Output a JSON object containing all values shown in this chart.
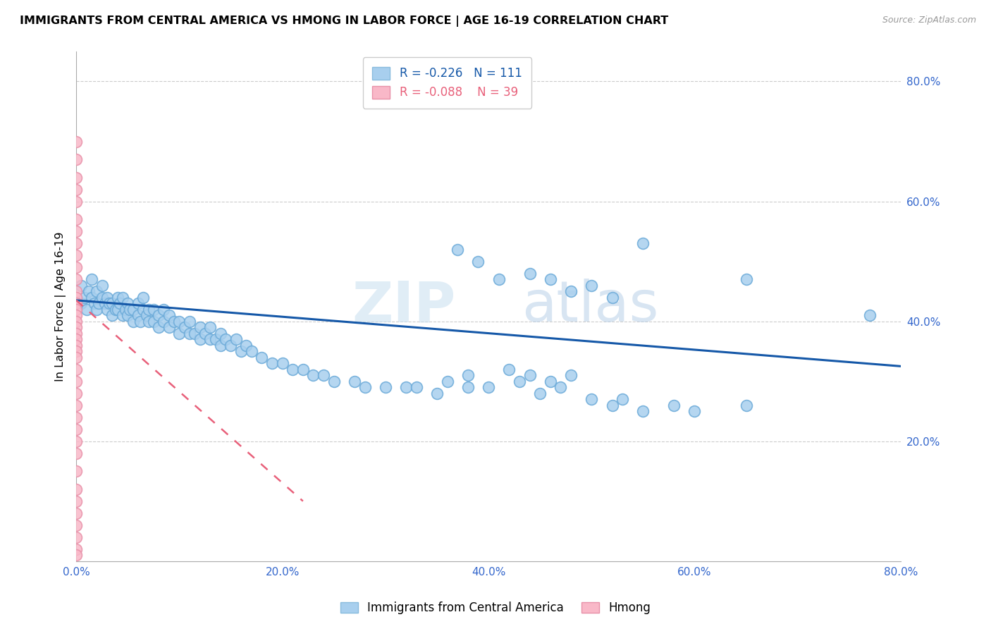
{
  "title": "IMMIGRANTS FROM CENTRAL AMERICA VS HMONG IN LABOR FORCE | AGE 16-19 CORRELATION CHART",
  "source": "Source: ZipAtlas.com",
  "ylabel": "In Labor Force | Age 16-19",
  "blue_R": -0.226,
  "blue_N": 111,
  "pink_R": -0.088,
  "pink_N": 39,
  "blue_color": "#A8CFEE",
  "pink_color": "#F9B8C8",
  "blue_line_color": "#1558A8",
  "pink_line_color": "#E8607A",
  "legend_blue_label": "Immigrants from Central America",
  "legend_pink_label": "Hmong",
  "watermark": "ZIPAtlas",
  "xmin": 0.0,
  "xmax": 0.8,
  "ymin": 0.0,
  "ymax": 0.85,
  "blue_line_x0": 0.0,
  "blue_line_x1": 0.8,
  "blue_line_y0": 0.435,
  "blue_line_y1": 0.325,
  "pink_line_x0": 0.0,
  "pink_line_x1": 0.22,
  "pink_line_y0": 0.435,
  "pink_line_y1": 0.1,
  "blue_scatter_x": [
    0.005,
    0.005,
    0.008,
    0.01,
    0.012,
    0.015,
    0.015,
    0.018,
    0.02,
    0.02,
    0.022,
    0.025,
    0.025,
    0.028,
    0.03,
    0.03,
    0.032,
    0.035,
    0.035,
    0.038,
    0.04,
    0.04,
    0.042,
    0.045,
    0.045,
    0.048,
    0.05,
    0.05,
    0.052,
    0.055,
    0.055,
    0.06,
    0.06,
    0.062,
    0.065,
    0.065,
    0.068,
    0.07,
    0.07,
    0.075,
    0.075,
    0.08,
    0.08,
    0.085,
    0.085,
    0.09,
    0.09,
    0.095,
    0.1,
    0.1,
    0.105,
    0.11,
    0.11,
    0.115,
    0.12,
    0.12,
    0.125,
    0.13,
    0.13,
    0.135,
    0.14,
    0.14,
    0.145,
    0.15,
    0.155,
    0.16,
    0.165,
    0.17,
    0.18,
    0.19,
    0.2,
    0.21,
    0.22,
    0.23,
    0.24,
    0.25,
    0.27,
    0.28,
    0.3,
    0.32,
    0.33,
    0.35,
    0.36,
    0.38,
    0.38,
    0.4,
    0.42,
    0.43,
    0.44,
    0.45,
    0.46,
    0.47,
    0.48,
    0.5,
    0.52,
    0.53,
    0.55,
    0.58,
    0.6,
    0.65,
    0.37,
    0.39,
    0.41,
    0.44,
    0.46,
    0.48,
    0.5,
    0.52,
    0.55,
    0.65,
    0.77
  ],
  "blue_scatter_y": [
    0.43,
    0.46,
    0.44,
    0.42,
    0.45,
    0.44,
    0.47,
    0.43,
    0.42,
    0.45,
    0.43,
    0.44,
    0.46,
    0.43,
    0.42,
    0.44,
    0.43,
    0.41,
    0.43,
    0.42,
    0.42,
    0.44,
    0.43,
    0.41,
    0.44,
    0.42,
    0.41,
    0.43,
    0.42,
    0.4,
    0.42,
    0.41,
    0.43,
    0.4,
    0.42,
    0.44,
    0.41,
    0.4,
    0.42,
    0.4,
    0.42,
    0.39,
    0.41,
    0.4,
    0.42,
    0.39,
    0.41,
    0.4,
    0.38,
    0.4,
    0.39,
    0.38,
    0.4,
    0.38,
    0.37,
    0.39,
    0.38,
    0.37,
    0.39,
    0.37,
    0.36,
    0.38,
    0.37,
    0.36,
    0.37,
    0.35,
    0.36,
    0.35,
    0.34,
    0.33,
    0.33,
    0.32,
    0.32,
    0.31,
    0.31,
    0.3,
    0.3,
    0.29,
    0.29,
    0.29,
    0.29,
    0.28,
    0.3,
    0.29,
    0.31,
    0.29,
    0.32,
    0.3,
    0.31,
    0.28,
    0.3,
    0.29,
    0.31,
    0.27,
    0.26,
    0.27,
    0.25,
    0.26,
    0.25,
    0.26,
    0.52,
    0.5,
    0.47,
    0.48,
    0.47,
    0.45,
    0.46,
    0.44,
    0.53,
    0.47,
    0.41
  ],
  "pink_scatter_x": [
    0.0,
    0.0,
    0.0,
    0.0,
    0.0,
    0.0,
    0.0,
    0.0,
    0.0,
    0.0,
    0.0,
    0.0,
    0.0,
    0.0,
    0.0,
    0.0,
    0.0,
    0.0,
    0.0,
    0.0,
    0.0,
    0.0,
    0.0,
    0.0,
    0.0,
    0.0,
    0.0,
    0.0,
    0.0,
    0.0,
    0.0,
    0.0,
    0.0,
    0.0,
    0.0,
    0.0,
    0.0,
    0.0,
    0.0
  ],
  "pink_scatter_y": [
    0.7,
    0.67,
    0.64,
    0.62,
    0.6,
    0.57,
    0.55,
    0.53,
    0.51,
    0.49,
    0.47,
    0.45,
    0.44,
    0.43,
    0.42,
    0.41,
    0.4,
    0.39,
    0.38,
    0.37,
    0.36,
    0.35,
    0.34,
    0.32,
    0.3,
    0.28,
    0.26,
    0.24,
    0.22,
    0.2,
    0.18,
    0.15,
    0.12,
    0.1,
    0.08,
    0.06,
    0.04,
    0.02,
    0.01
  ]
}
